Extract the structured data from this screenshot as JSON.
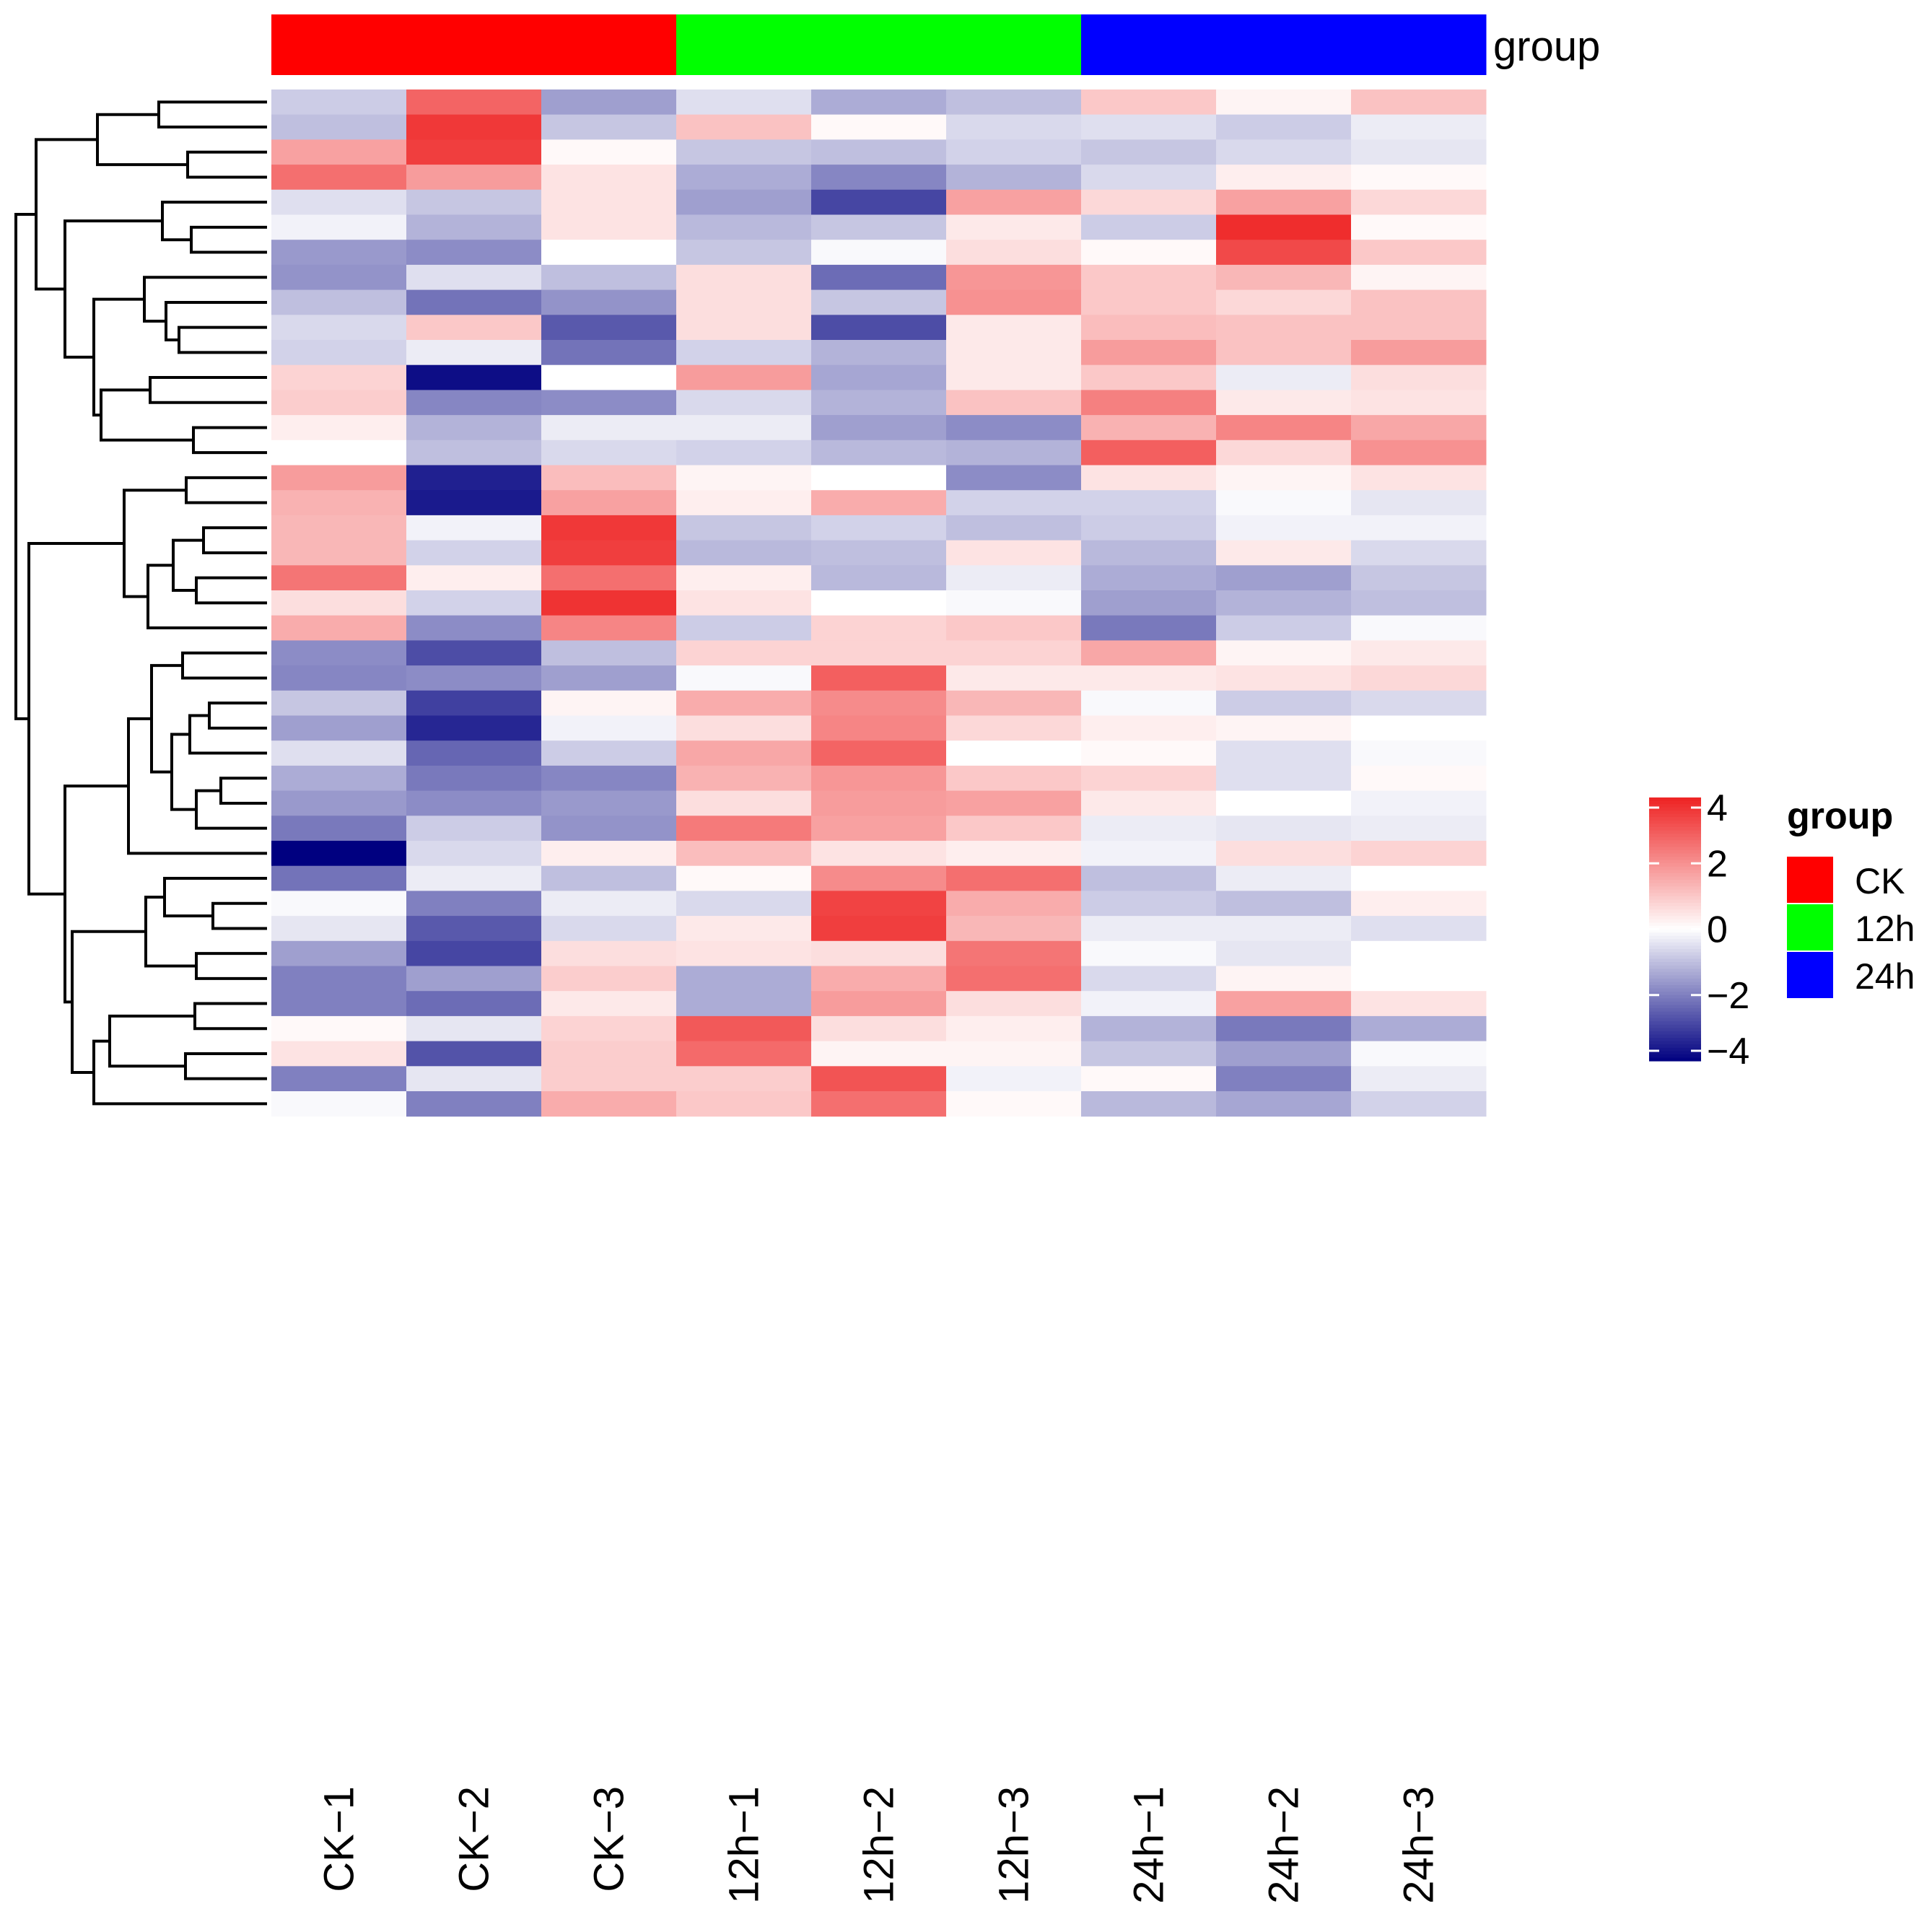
{
  "chart_data": {
    "type": "heatmap",
    "title": "",
    "columns": [
      "CK−1",
      "CK−2",
      "CK−3",
      "12h−1",
      "12h−2",
      "12h−3",
      "24h−1",
      "24h−2",
      "24h−3"
    ],
    "column_groups": [
      "CK",
      "CK",
      "CK",
      "12h",
      "12h",
      "12h",
      "24h",
      "24h",
      "24h"
    ],
    "annotation": {
      "title": "group",
      "legend_title": "group",
      "levels": [
        {
          "name": "CK",
          "color": "#FF0000"
        },
        {
          "name": "12h",
          "color": "#00FF00"
        },
        {
          "name": "24h",
          "color": "#0000FF"
        }
      ]
    },
    "color_scale": {
      "min": -4,
      "max": 4,
      "low_color": "#000080",
      "mid_color": "#FFFFFF",
      "high_color": "#EE2222",
      "ticks": [
        4,
        2,
        0,
        -2,
        -4
      ],
      "tick_labels": [
        "4",
        "2",
        "0",
        "−2",
        "−4"
      ]
    },
    "values": [
      [
        -0.8,
        2.8,
        -1.5,
        -0.5,
        -1.3,
        -1.0,
        1.0,
        0.2,
        1.1
      ],
      [
        -1.0,
        3.6,
        -0.9,
        1.1,
        0.1,
        -0.6,
        -0.5,
        -0.8,
        -0.3
      ],
      [
        1.7,
        3.5,
        0.1,
        -0.9,
        -1.0,
        -0.7,
        -0.9,
        -0.6,
        -0.4
      ],
      [
        2.6,
        1.8,
        0.5,
        -1.3,
        -1.9,
        -1.2,
        -0.6,
        0.3,
        0.1
      ],
      [
        -0.5,
        -0.9,
        0.5,
        -1.5,
        -2.9,
        1.7,
        0.7,
        1.7,
        0.7
      ],
      [
        -0.2,
        -1.2,
        0.5,
        -1.1,
        -0.9,
        0.4,
        -0.8,
        3.8,
        0.1
      ],
      [
        -1.6,
        -1.8,
        0.0,
        -0.9,
        -0.1,
        0.6,
        0.1,
        3.3,
        1.0
      ],
      [
        -1.7,
        -0.5,
        -1.0,
        0.6,
        -2.3,
        1.9,
        1.0,
        1.3,
        0.2
      ],
      [
        -1.0,
        -2.2,
        -1.7,
        0.6,
        -0.9,
        2.0,
        1.0,
        0.7,
        1.1
      ],
      [
        -0.6,
        1.0,
        -2.6,
        0.6,
        -2.8,
        0.4,
        1.2,
        1.1,
        1.1
      ],
      [
        -0.7,
        -0.3,
        -2.2,
        -0.7,
        -1.2,
        0.4,
        1.8,
        1.1,
        1.8
      ],
      [
        0.8,
        -3.8,
        0.0,
        1.8,
        -1.4,
        0.4,
        1.0,
        -0.3,
        0.6
      ],
      [
        0.9,
        -1.9,
        -1.8,
        -0.6,
        -1.2,
        1.1,
        2.3,
        0.4,
        0.5
      ],
      [
        0.3,
        -1.2,
        -0.3,
        -0.3,
        -1.5,
        -1.8,
        1.4,
        2.2,
        1.6
      ],
      [
        0.0,
        -1.0,
        -0.6,
        -0.7,
        -1.1,
        -1.2,
        2.9,
        0.7,
        2.0
      ],
      [
        1.8,
        -3.5,
        1.2,
        0.2,
        0.0,
        -1.8,
        0.5,
        0.2,
        0.5
      ],
      [
        1.4,
        -3.6,
        1.7,
        0.3,
        1.5,
        -0.7,
        -0.7,
        -0.1,
        -0.4
      ],
      [
        1.3,
        -0.2,
        3.6,
        -0.9,
        -0.7,
        -1.0,
        -0.8,
        -0.2,
        -0.2
      ],
      [
        1.3,
        -0.7,
        3.5,
        -1.1,
        -1.0,
        0.5,
        -1.1,
        0.4,
        -0.6
      ],
      [
        2.5,
        0.3,
        2.6,
        0.3,
        -1.1,
        -0.3,
        -1.3,
        -1.5,
        -0.9
      ],
      [
        0.6,
        -0.7,
        3.7,
        0.5,
        0.0,
        -0.1,
        -1.5,
        -1.2,
        -1.0
      ],
      [
        1.5,
        -1.8,
        2.2,
        -0.8,
        0.8,
        1.0,
        -2.1,
        -0.8,
        -0.1
      ],
      [
        -1.8,
        -2.8,
        -1.0,
        0.8,
        0.8,
        0.8,
        1.6,
        0.2,
        0.4
      ],
      [
        -1.9,
        -1.8,
        -1.5,
        -0.1,
        2.9,
        0.4,
        0.4,
        0.5,
        0.7
      ],
      [
        -0.9,
        -3.0,
        0.2,
        1.5,
        2.1,
        1.3,
        -0.1,
        -0.8,
        -0.6
      ],
      [
        -1.5,
        -3.4,
        -0.2,
        0.6,
        2.2,
        0.7,
        0.3,
        0.2,
        0.0
      ],
      [
        -0.5,
        -2.4,
        -0.8,
        1.6,
        2.8,
        0.0,
        0.1,
        -0.5,
        -0.1
      ],
      [
        -1.3,
        -2.1,
        -1.9,
        1.4,
        1.9,
        1.0,
        0.8,
        -0.5,
        0.1
      ],
      [
        -1.6,
        -1.8,
        -1.6,
        0.6,
        1.8,
        1.7,
        0.4,
        0.0,
        -0.2
      ],
      [
        -2.1,
        -0.8,
        -1.7,
        2.4,
        1.7,
        1.0,
        -0.3,
        -0.4,
        -0.3
      ],
      [
        -4.2,
        -0.6,
        0.3,
        1.2,
        0.5,
        0.3,
        -0.2,
        0.6,
        0.8
      ],
      [
        -2.2,
        -0.3,
        -1.0,
        0.1,
        2.1,
        2.6,
        -1.0,
        -0.3,
        0.0
      ],
      [
        -0.1,
        -2.0,
        -0.3,
        -0.6,
        3.4,
        1.5,
        -0.8,
        -1.0,
        0.3
      ],
      [
        -0.4,
        -2.6,
        -0.6,
        0.4,
        3.5,
        1.3,
        -0.3,
        -0.3,
        -0.5
      ],
      [
        -1.5,
        -2.9,
        0.6,
        0.5,
        0.6,
        2.5,
        -0.1,
        -0.4,
        0.0
      ],
      [
        -2.0,
        -1.5,
        0.9,
        -1.3,
        1.5,
        2.6,
        -0.6,
        0.2,
        0.0
      ],
      [
        -2.0,
        -2.3,
        0.4,
        -1.3,
        1.8,
        0.6,
        -0.2,
        1.7,
        0.5
      ],
      [
        0.1,
        -0.4,
        0.8,
        3.0,
        0.6,
        0.3,
        -1.2,
        -2.1,
        -1.3
      ],
      [
        0.5,
        -2.7,
        0.9,
        2.7,
        0.2,
        0.2,
        -0.9,
        -1.5,
        -0.1
      ],
      [
        -2.0,
        -0.4,
        0.9,
        0.9,
        3.1,
        -0.2,
        0.1,
        -2.0,
        -0.3
      ],
      [
        -0.1,
        -2.0,
        1.5,
        1.0,
        2.6,
        0.1,
        -1.1,
        -1.4,
        -0.7
      ]
    ]
  }
}
